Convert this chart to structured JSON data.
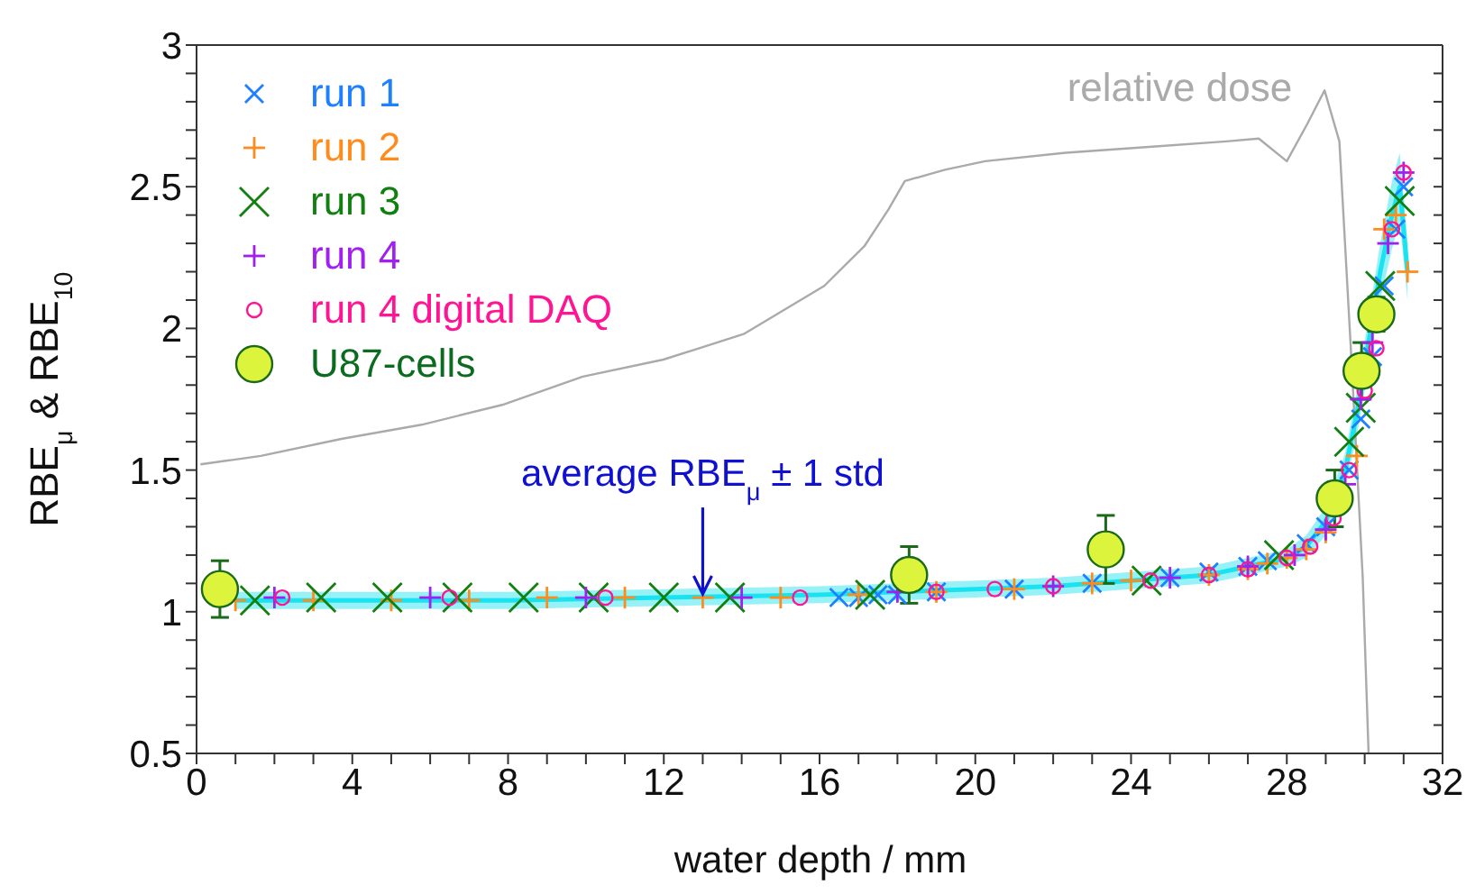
{
  "chart_data": {
    "type": "scatter",
    "xlabel": "water depth  / mm",
    "ylabel": "RBE$_{μ}$  &  RBE$_{10}$",
    "legend": "top left",
    "xlim": [
      0,
      32
    ],
    "ylim": [
      0.5,
      3
    ],
    "xticks": [
      0,
      {
        "value": 1,
        "label": null
      },
      {
        "value": 2,
        "label": null
      },
      {
        "value": 3,
        "label": null
      },
      4,
      {
        "value": 5,
        "label": null
      },
      {
        "value": 6,
        "label": null
      },
      {
        "value": 7,
        "label": null
      },
      8,
      {
        "value": 9,
        "label": null
      },
      {
        "value": 10,
        "label": null
      },
      {
        "value": 11,
        "label": null
      },
      12,
      {
        "value": 13,
        "label": null
      },
      {
        "value": 14,
        "label": null
      },
      {
        "value": 15,
        "label": null
      },
      16,
      {
        "value": 17,
        "label": null
      },
      {
        "value": 18,
        "label": null
      },
      {
        "value": 19,
        "label": null
      },
      20,
      {
        "value": 21,
        "label": null
      },
      {
        "value": 22,
        "label": null
      },
      {
        "value": 23,
        "label": null
      },
      24,
      {
        "value": 25,
        "label": null
      },
      {
        "value": 26,
        "label": null
      },
      {
        "value": 27,
        "label": null
      },
      28,
      {
        "value": 29,
        "label": null
      },
      {
        "value": 30,
        "label": null
      },
      {
        "value": 31,
        "label": null
      },
      32
    ],
    "yticks": [
      0.5,
      {
        "value": 0.6,
        "label": null
      },
      {
        "value": 0.7,
        "label": null
      },
      {
        "value": 0.8,
        "label": null
      },
      {
        "value": 0.9,
        "label": null
      },
      1,
      {
        "value": 1.1,
        "label": null
      },
      {
        "value": 1.2,
        "label": null
      },
      {
        "value": 1.3,
        "label": null
      },
      {
        "value": 1.4,
        "label": null
      },
      1.5,
      {
        "value": 1.6,
        "label": null
      },
      {
        "value": 1.7,
        "label": null
      },
      {
        "value": 1.8,
        "label": null
      },
      {
        "value": 1.9,
        "label": null
      },
      2,
      {
        "value": 2.1,
        "label": null
      },
      {
        "value": 2.2,
        "label": null
      },
      {
        "value": 2.3,
        "label": null
      },
      {
        "value": 2.4,
        "label": null
      },
      2.5,
      {
        "value": 2.6,
        "label": null
      },
      {
        "value": 2.7,
        "label": null
      },
      {
        "value": 2.8,
        "label": null
      },
      {
        "value": 2.9,
        "label": null
      },
      3
    ],
    "annotations": [
      {
        "text": "average RBE$_{μ}$ ± 1 std",
        "x": 13,
        "y": 1.05
      }
    ],
    "series": [
      {
        "type": "line",
        "name": "relative dose",
        "color": "#aaaaaa",
        "x": [
          0.1,
          1.65,
          3.72,
          5.78,
          7.85,
          9.92,
          11.99,
          14.05,
          16.12,
          17.15,
          17.77,
          18.19,
          19.22,
          20.25,
          22.32,
          24.38,
          26.45,
          27.28,
          28.0,
          28.52,
          28.97,
          29.35,
          29.66,
          29.95,
          30.1
        ],
        "values": [
          1.52,
          1.55,
          1.61,
          1.66,
          1.73,
          1.83,
          1.89,
          1.98,
          2.15,
          2.29,
          2.42,
          2.52,
          2.56,
          2.59,
          2.62,
          2.64,
          2.66,
          2.67,
          2.59,
          2.72,
          2.84,
          2.66,
          1.89,
          1.12,
          0.5
        ]
      },
      {
        "type": "line",
        "color": "#19e3f0",
        "x": [
          1,
          4,
          8,
          12,
          16,
          18,
          20,
          22,
          24,
          26,
          27,
          28,
          28.5,
          29,
          29.5,
          29.8,
          30.1,
          30.4,
          30.7,
          30.9,
          31.1
        ],
        "values": [
          1.04,
          1.04,
          1.04,
          1.05,
          1.06,
          1.07,
          1.08,
          1.09,
          1.11,
          1.13,
          1.16,
          1.19,
          1.23,
          1.32,
          1.5,
          1.7,
          1.95,
          2.2,
          2.4,
          2.5,
          2.2
        ],
        "lower": [
          1.01,
          1.01,
          1.01,
          1.02,
          1.03,
          1.04,
          1.05,
          1.06,
          1.08,
          1.1,
          1.13,
          1.16,
          1.19,
          1.27,
          1.44,
          1.62,
          1.86,
          2.1,
          2.28,
          2.38,
          2.1
        ],
        "upper": [
          1.07,
          1.07,
          1.07,
          1.08,
          1.09,
          1.1,
          1.11,
          1.12,
          1.14,
          1.16,
          1.19,
          1.22,
          1.27,
          1.37,
          1.56,
          1.78,
          2.04,
          2.3,
          2.52,
          2.62,
          2.3
        ]
      },
      {
        "name": "run 1",
        "color": "#1e7fff",
        "marker": "x",
        "x": [
          16.5,
          17,
          17.5,
          18,
          19,
          21,
          23,
          25,
          26,
          27,
          27.5,
          28,
          28.5,
          29,
          29.3,
          29.6,
          29.9,
          30.2,
          30.5,
          30.8,
          31.0
        ],
        "values": [
          1.05,
          1.05,
          1.06,
          1.06,
          1.07,
          1.08,
          1.1,
          1.12,
          1.14,
          1.16,
          1.18,
          null,
          1.24,
          1.3,
          null,
          1.5,
          1.68,
          1.9,
          2.15,
          2.35,
          2.5
        ]
      },
      {
        "name": "run 2",
        "color": "#ff8c1a",
        "marker": "cross",
        "x": [
          1,
          3,
          5,
          7,
          9,
          11,
          13,
          15,
          17,
          19,
          21,
          22,
          23,
          24,
          25,
          26,
          27,
          27.5,
          28,
          28.5,
          29,
          29.4,
          29.8,
          30.1,
          30.5,
          30.8,
          31.1
        ],
        "values": [
          1.04,
          1.04,
          1.04,
          1.04,
          1.05,
          1.05,
          1.05,
          1.05,
          1.06,
          1.07,
          1.08,
          null,
          1.1,
          1.11,
          null,
          1.13,
          1.15,
          1.17,
          1.19,
          1.22,
          1.28,
          null,
          1.55,
          null,
          2.35,
          2.4,
          2.2
        ]
      },
      {
        "name": "run 3",
        "color": "#118011",
        "marker": "x",
        "x": [
          1.5,
          3.2,
          4.9,
          6.7,
          8.4,
          10.2,
          12,
          13.7,
          17.3,
          24.4,
          27.8,
          29.6,
          29.9,
          30.4,
          30.9
        ],
        "values": [
          1.04,
          1.05,
          1.05,
          1.05,
          1.05,
          1.05,
          1.05,
          1.05,
          1.06,
          1.11,
          1.2,
          1.6,
          1.72,
          2.15,
          2.45
        ]
      },
      {
        "name": "run 4",
        "color": "#a020f0",
        "marker": "cross",
        "x": [
          2,
          6,
          10,
          14,
          18,
          22,
          25,
          27,
          28.2,
          29,
          29.5,
          29.9,
          30.2,
          30.6,
          31.0
        ],
        "values": [
          1.05,
          1.05,
          1.05,
          1.05,
          1.07,
          1.09,
          1.12,
          1.16,
          1.2,
          1.29,
          1.45,
          1.75,
          1.95,
          2.3,
          2.55
        ]
      },
      {
        "name": "run 4 digital DAQ",
        "color": "#ff1493",
        "marker": "circle",
        "x": [
          2.2,
          6.5,
          10.5,
          15.5,
          19,
          20.5,
          22,
          24.5,
          26,
          27,
          28,
          28.6,
          29.2,
          29.6,
          30,
          30.3,
          30.7,
          31.0
        ],
        "values": [
          1.05,
          1.05,
          1.05,
          1.05,
          1.07,
          1.08,
          1.09,
          1.11,
          1.13,
          1.15,
          1.19,
          1.23,
          1.33,
          1.5,
          1.78,
          1.93,
          2.35,
          2.55
        ]
      },
      {
        "name": "U87-cells",
        "color": "#dcf53c",
        "marker": "circle",
        "x": [
          0.6,
          18.3,
          23.35,
          29.23,
          29.92,
          30.3
        ],
        "values": [
          1.08,
          1.13,
          1.22,
          1.4,
          1.85,
          2.05
        ],
        "errors": [
          0.1,
          0.1,
          0.12,
          0.1,
          0.1,
          0.06
        ]
      }
    ]
  }
}
